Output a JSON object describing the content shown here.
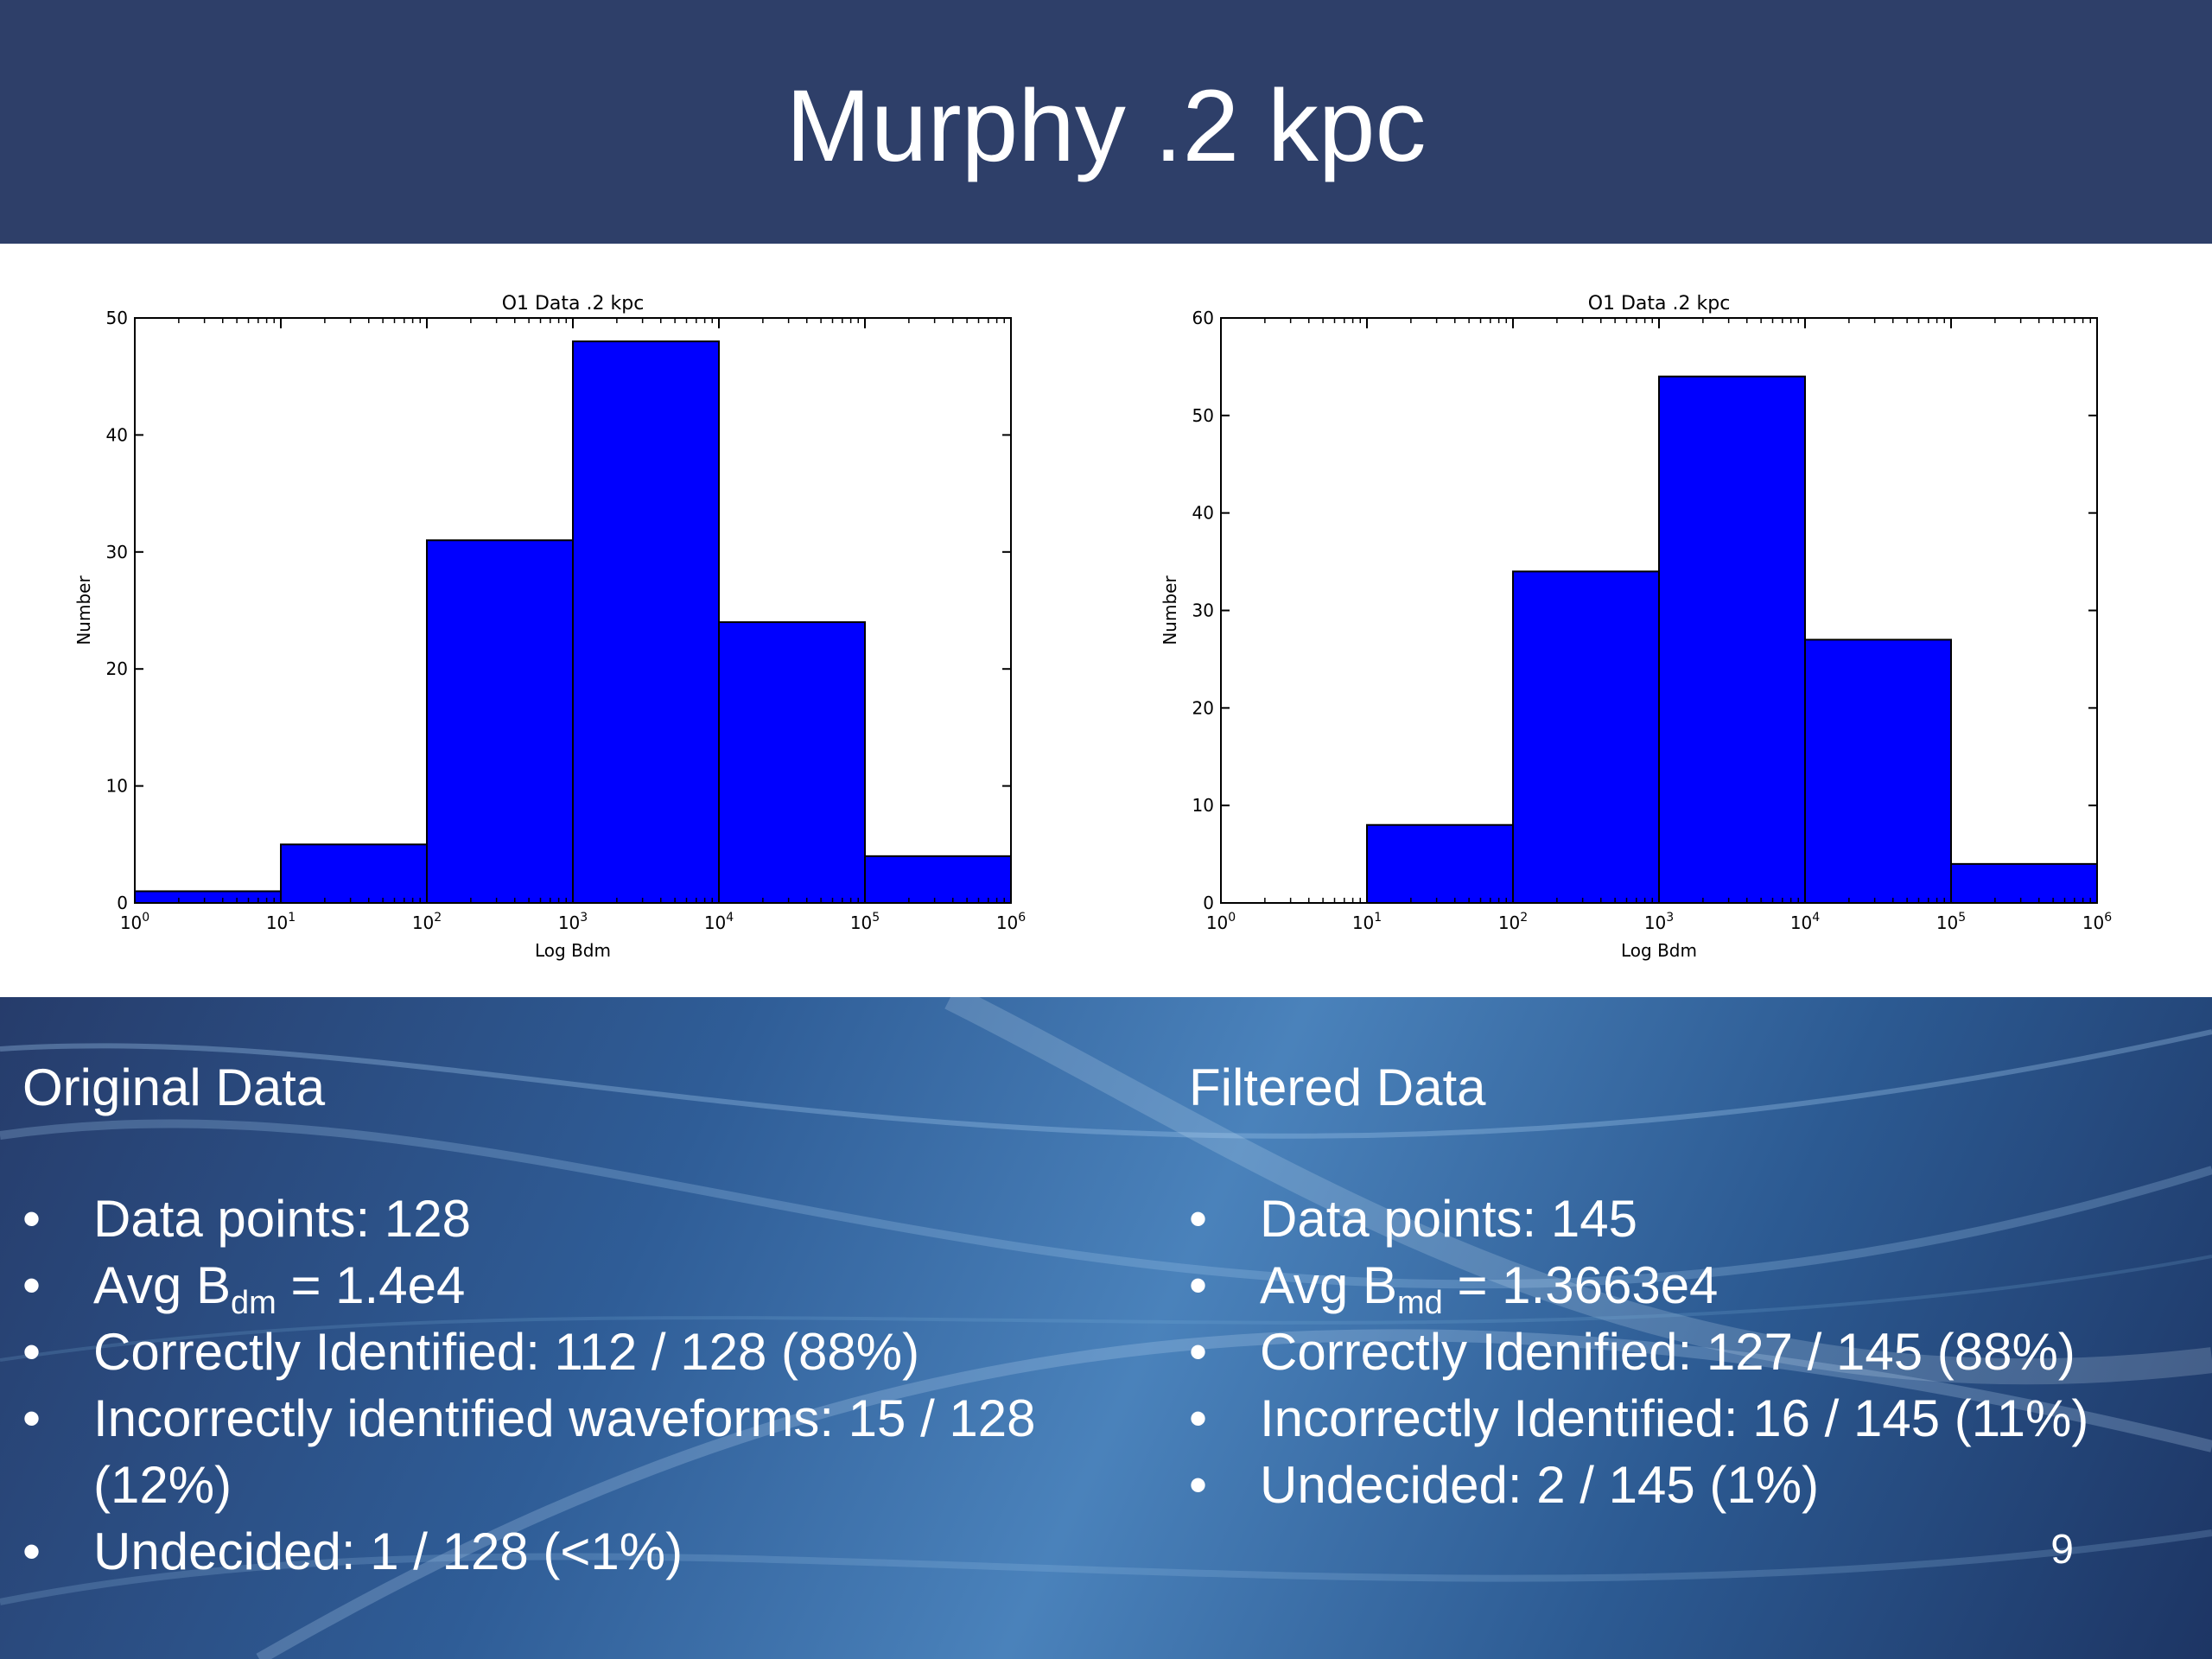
{
  "slide": {
    "title": "Murphy .2 kpc",
    "page_number": "9"
  },
  "colors": {
    "header_bg": "#2e3f69",
    "bar_fill": "#0000ff",
    "text": "#ffffff"
  },
  "chart_data": [
    {
      "type": "bar",
      "title": "O1 Data .2 kpc",
      "xlabel": "Log Bdm",
      "ylabel": "Number",
      "x_scale": "log",
      "xlim": [
        1,
        1000000
      ],
      "ylim": [
        0,
        50
      ],
      "yticks": [
        "0",
        "10",
        "20",
        "30",
        "40",
        "50"
      ],
      "xticks": [
        {
          "base": "10",
          "exp": "0"
        },
        {
          "base": "10",
          "exp": "1"
        },
        {
          "base": "10",
          "exp": "2"
        },
        {
          "base": "10",
          "exp": "3"
        },
        {
          "base": "10",
          "exp": "4"
        },
        {
          "base": "10",
          "exp": "5"
        },
        {
          "base": "10",
          "exp": "6"
        }
      ],
      "bins": [
        [
          1,
          10
        ],
        [
          10,
          100
        ],
        [
          100,
          1000
        ],
        [
          1000,
          10000
        ],
        [
          10000,
          100000
        ],
        [
          100000,
          1000000
        ]
      ],
      "values": [
        1,
        5,
        31,
        48,
        24,
        4
      ]
    },
    {
      "type": "bar",
      "title": "O1 Data .2 kpc",
      "xlabel": "Log Bdm",
      "ylabel": "Number",
      "x_scale": "log",
      "xlim": [
        1,
        1000000
      ],
      "ylim": [
        0,
        60
      ],
      "yticks": [
        "0",
        "10",
        "20",
        "30",
        "40",
        "50",
        "60"
      ],
      "xticks": [
        {
          "base": "10",
          "exp": "0"
        },
        {
          "base": "10",
          "exp": "1"
        },
        {
          "base": "10",
          "exp": "2"
        },
        {
          "base": "10",
          "exp": "3"
        },
        {
          "base": "10",
          "exp": "4"
        },
        {
          "base": "10",
          "exp": "5"
        },
        {
          "base": "10",
          "exp": "6"
        }
      ],
      "bins": [
        [
          1,
          10
        ],
        [
          10,
          100
        ],
        [
          100,
          1000
        ],
        [
          1000,
          10000
        ],
        [
          10000,
          100000
        ],
        [
          100000,
          1000000
        ]
      ],
      "values": [
        0,
        8,
        34,
        54,
        27,
        4
      ]
    }
  ],
  "original": {
    "heading": "Original Data",
    "data_points": "Data points: 128",
    "avg_prefix": "Avg B",
    "avg_sub": "dm",
    "avg_value": " = 1.4e4",
    "correct": "Correctly Identified: 112 / 128 (88%)",
    "incorrect": "Incorrectly identified waveforms: 15 / 128 (12%)",
    "undecided": "Undecided: 1 / 128 (<1%)"
  },
  "filtered": {
    "heading": "Filtered Data",
    "data_points": "Data points: 145",
    "avg_prefix": "Avg B",
    "avg_sub": "md",
    "avg_value": " = 1.3663e4",
    "correct": "Correctly Idenified: 127 / 145 (88%)",
    "incorrect": "Incorrectly Identified: 16 / 145 (11%)",
    "undecided": "Undecided: 2 / 145 (1%)"
  }
}
